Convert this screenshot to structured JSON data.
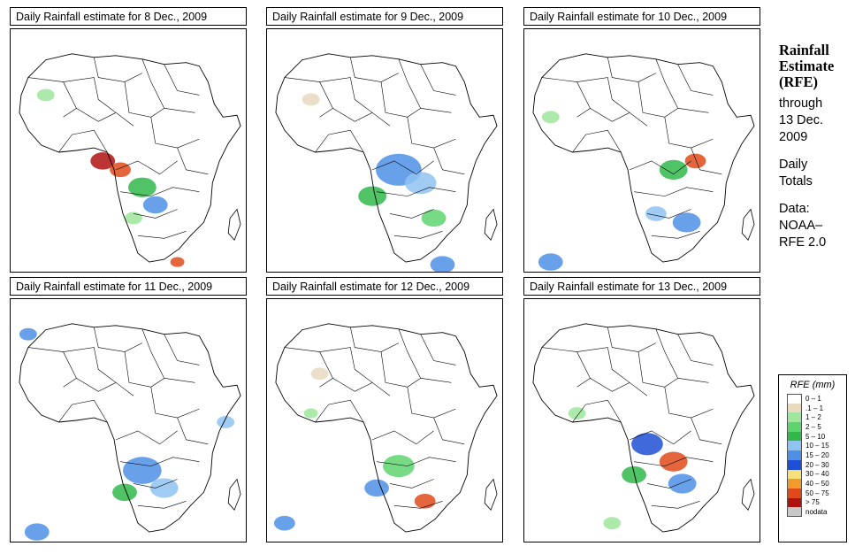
{
  "panels": [
    {
      "title": "Daily Rainfall estimate for  8 Dec., 2009"
    },
    {
      "title": "Daily Rainfall estimate for  9 Dec., 2009"
    },
    {
      "title": "Daily Rainfall estimate for  10 Dec., 2009"
    },
    {
      "title": "Daily Rainfall estimate for  11 Dec., 2009"
    },
    {
      "title": "Daily Rainfall estimate for  12 Dec., 2009"
    },
    {
      "title": "Daily Rainfall estimate for  13 Dec., 2009"
    }
  ],
  "sidebar": {
    "heading1": "Rainfall",
    "heading2": "Estimate",
    "heading3": "(RFE)",
    "through": "through",
    "date1": "13 Dec.",
    "date2": "2009",
    "totals1": "Daily",
    "totals2": "Totals",
    "data_label": "Data:",
    "source1": "NOAA–",
    "source2": "RFE 2.0"
  },
  "legend": {
    "title": "RFE (mm)",
    "items": [
      {
        "label": "0 – 1",
        "color": "#ffffff"
      },
      {
        "label": ".1 – 1",
        "color": "#e8d9bf"
      },
      {
        "label": "1 – 2",
        "color": "#9ee69e"
      },
      {
        "label": "2 – 5",
        "color": "#5fd36f"
      },
      {
        "label": "5 – 10",
        "color": "#30b84a"
      },
      {
        "label": "10 – 15",
        "color": "#8fc3f2"
      },
      {
        "label": "15 – 20",
        "color": "#4f8fe6"
      },
      {
        "label": "20 – 30",
        "color": "#1f4fd6"
      },
      {
        "label": "30 – 40",
        "color": "#f5e07a"
      },
      {
        "label": "40 – 50",
        "color": "#f29a2a"
      },
      {
        "label": "50 – 75",
        "color": "#e04a1a"
      },
      {
        "label": "> 75",
        "color": "#b01010"
      },
      {
        "label": "nodata",
        "color": "#c8c8c8"
      }
    ]
  }
}
